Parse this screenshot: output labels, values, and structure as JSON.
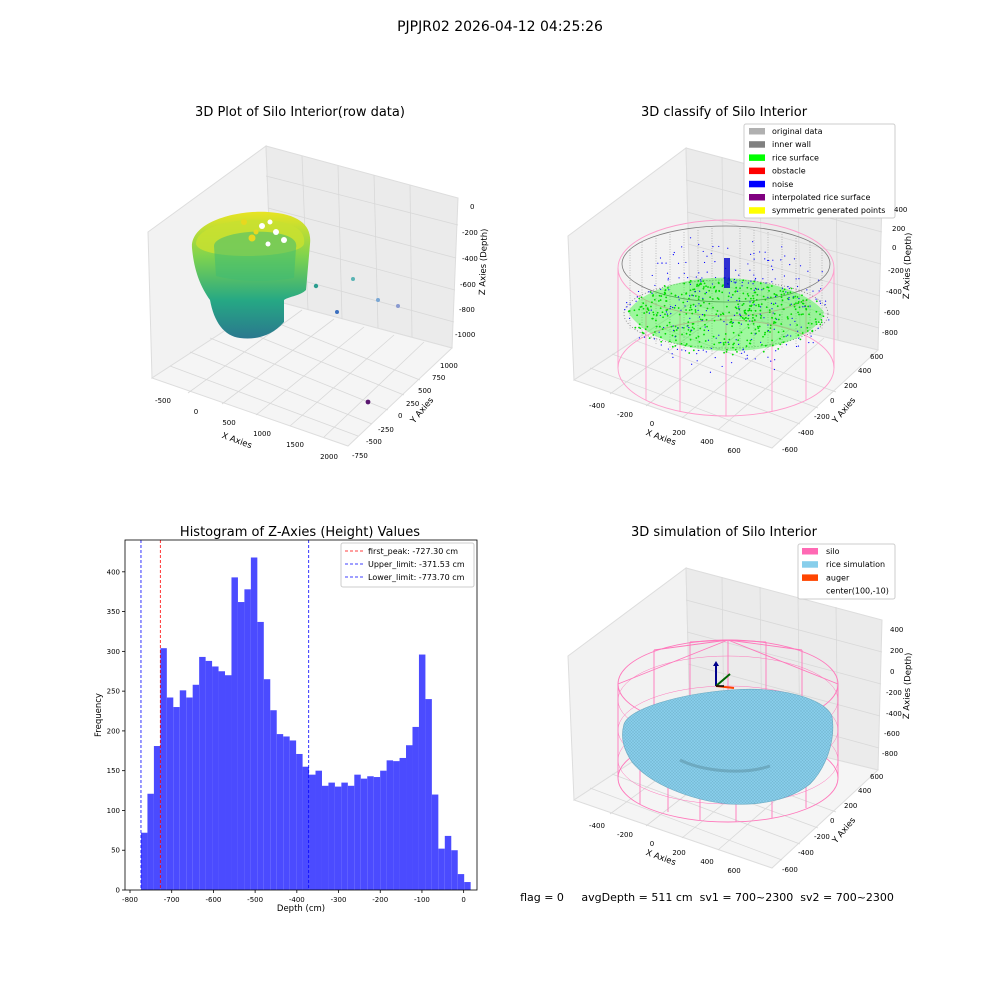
{
  "suptitle": "PJPJR02 2026-04-12 04:25:26",
  "footer": "flag = 0     avgDepth = 511 cm  sv1 = 700~2300  sv2 = 700~2300",
  "colors": {
    "hist_bar": "#4b4bff",
    "upper_peak_line": "#ff0000",
    "limit_line": "#0000ff",
    "silo_wire": "#ff77bb",
    "rice_surface": "#87cdea",
    "auger": "#ff4500",
    "rice_green": "#00ff00",
    "inner_wall": "#808080",
    "noise": "#0000ff"
  },
  "panels": {
    "raw": {
      "title": "3D Plot of Silo Interior(row data)",
      "xlabel": "X Axies",
      "ylabel": "Y Axies",
      "zlabel": "Z Axies (Depth)",
      "xticks": [
        "-500",
        "0",
        "500",
        "1000",
        "1500",
        "2000"
      ],
      "yticks": [
        "-750",
        "-500",
        "-250",
        "0",
        "250",
        "500",
        "750",
        "1000"
      ],
      "zticks": [
        "0",
        "-200",
        "-400",
        "-600",
        "-800",
        "-1000"
      ]
    },
    "classify": {
      "title": "3D classify of Silo Interior",
      "xlabel": "X Axies",
      "ylabel": "Y Axies",
      "zlabel": "Z Axies (Depth)",
      "xticks": [
        "-400",
        "-200",
        "0",
        "200",
        "400",
        "600"
      ],
      "yticks": [
        "-600",
        "-400",
        "-200",
        "0",
        "200",
        "400",
        "600"
      ],
      "zticks": [
        "400",
        "200",
        "0",
        "-200",
        "-400",
        "-600",
        "-800"
      ],
      "legend": [
        {
          "label": "original data",
          "color": "#b0b0b0"
        },
        {
          "label": "inner wall",
          "color": "#808080"
        },
        {
          "label": "rice surface",
          "color": "#00ff00"
        },
        {
          "label": "obstacle",
          "color": "#ff0000"
        },
        {
          "label": "noise",
          "color": "#0000ff"
        },
        {
          "label": "interpolated rice surface",
          "color": "#800080"
        },
        {
          "label": "symmetric generated points",
          "color": "#ffff00"
        }
      ]
    },
    "simulation": {
      "title": "3D simulation of Silo Interior",
      "xlabel": "X Axies",
      "ylabel": "Y Axies",
      "zlabel": "Z Axies (Depth)",
      "xticks": [
        "-400",
        "-200",
        "0",
        "200",
        "400",
        "600"
      ],
      "yticks": [
        "-600",
        "-400",
        "-200",
        "0",
        "200",
        "400",
        "600"
      ],
      "zticks": [
        "400",
        "200",
        "0",
        "-200",
        "-400",
        "-600",
        "-800"
      ],
      "legend": [
        {
          "label": "silo",
          "color": "#ff69b4"
        },
        {
          "label": "rice simulation",
          "color": "#87ceeb"
        },
        {
          "label": "auger",
          "color": "#ff4500"
        },
        {
          "label": "center(100,-10)",
          "color": ""
        }
      ]
    }
  },
  "chart_data": {
    "type": "bar",
    "title": "Histogram of Z-Axies (Height) Values",
    "xlabel": "Depth (cm)",
    "ylabel": "Frequency",
    "xlim": [
      -812,
      32
    ],
    "ylim": [
      0,
      440
    ],
    "xticks": [
      -800,
      -700,
      -600,
      -500,
      -400,
      -300,
      -200,
      -100,
      0
    ],
    "yticks": [
      0,
      50,
      100,
      150,
      200,
      250,
      300,
      350,
      400
    ],
    "bins_start": -773.7,
    "bin_width": 15.5,
    "values": [
      72,
      121,
      181,
      304,
      242,
      230,
      251,
      242,
      258,
      293,
      288,
      281,
      275,
      270,
      393,
      362,
      378,
      418,
      337,
      265,
      226,
      196,
      193,
      188,
      171,
      155,
      145,
      150,
      131,
      135,
      130,
      135,
      131,
      145,
      140,
      143,
      142,
      150,
      163,
      162,
      166,
      182,
      205,
      296,
      240,
      120,
      52,
      68,
      50,
      20,
      10
    ],
    "vlines": [
      {
        "label": "first_peak: -727.30 cm",
        "x": -727.3,
        "color": "#ff0000"
      },
      {
        "label": "Upper_limit: -371.53 cm",
        "x": -371.53,
        "color": "#0000ff"
      },
      {
        "label": "Lower_limit: -773.70 cm",
        "x": -773.7,
        "color": "#0000ff"
      }
    ],
    "legend_position": "upper right",
    "grid": false
  }
}
